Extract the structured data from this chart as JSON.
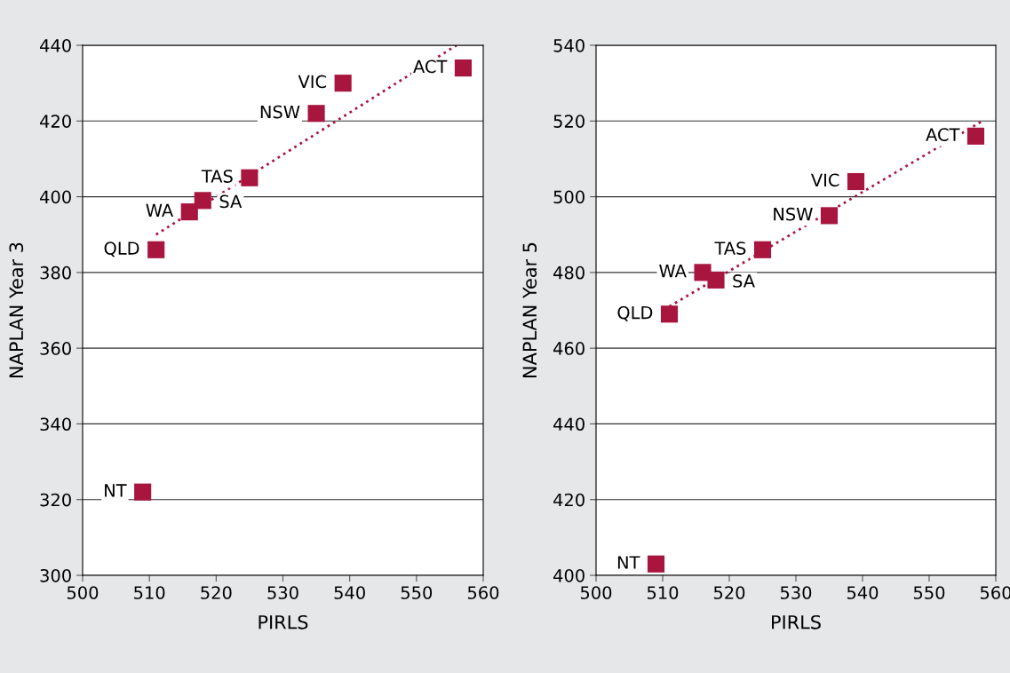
{
  "chart_data": [
    {
      "type": "scatter",
      "xlabel": "PIRLS",
      "ylabel": "NAPLAN Year 3",
      "xlim": [
        500,
        560
      ],
      "xticks": [
        500,
        510,
        520,
        530,
        540,
        550,
        560
      ],
      "ylim": [
        300,
        440
      ],
      "yticks": [
        300,
        320,
        340,
        360,
        380,
        400,
        420,
        440
      ],
      "grid": "y",
      "series": [
        {
          "color": "#a8163f",
          "marker": "square",
          "x": [
            509,
            511,
            516,
            518,
            525,
            535,
            539,
            557
          ],
          "values": [
            322,
            386,
            396,
            399,
            405,
            422,
            430,
            434
          ]
        },
        {
          "type": "line",
          "color": "#a8163f",
          "marker": "none",
          "line_style": "dotted",
          "x": [
            511,
            556
          ],
          "values": [
            390,
            440
          ]
        }
      ],
      "annotations": [
        {
          "text": "NT",
          "x": 509,
          "y": 322
        },
        {
          "text": "QLD",
          "x": 511,
          "y": 386
        },
        {
          "text": "WA",
          "x": 516,
          "y": 396
        },
        {
          "text": "SA",
          "x": 518,
          "y": 399
        },
        {
          "text": "TAS",
          "x": 525,
          "y": 405
        },
        {
          "text": "NSW",
          "x": 535,
          "y": 422
        },
        {
          "text": "VIC",
          "x": 539,
          "y": 430
        },
        {
          "text": "ACT",
          "x": 557,
          "y": 434
        }
      ]
    },
    {
      "type": "scatter",
      "xlabel": "PIRLS",
      "ylabel": "NAPLAN Year 5",
      "xlim": [
        500,
        560
      ],
      "xticks": [
        500,
        510,
        520,
        530,
        540,
        550,
        560
      ],
      "ylim": [
        400,
        540
      ],
      "yticks": [
        400,
        420,
        440,
        460,
        480,
        500,
        520,
        540
      ],
      "grid": "y",
      "series": [
        {
          "color": "#a8163f",
          "marker": "square",
          "x": [
            509,
            511,
            516,
            518,
            525,
            535,
            539,
            557
          ],
          "values": [
            403,
            469,
            480,
            478,
            486,
            495,
            504,
            516
          ]
        },
        {
          "type": "line",
          "color": "#a8163f",
          "marker": "none",
          "line_style": "dotted",
          "x": [
            511,
            558
          ],
          "values": [
            471,
            520
          ]
        }
      ],
      "annotations": [
        {
          "text": "NT",
          "x": 509,
          "y": 403
        },
        {
          "text": "QLD",
          "x": 511,
          "y": 469
        },
        {
          "text": "WA",
          "x": 516,
          "y": 480
        },
        {
          "text": "SA",
          "x": 518,
          "y": 478
        },
        {
          "text": "TAS",
          "x": 525,
          "y": 486
        },
        {
          "text": "NSW",
          "x": 535,
          "y": 495
        },
        {
          "text": "VIC",
          "x": 539,
          "y": 504
        },
        {
          "text": "ACT",
          "x": 557,
          "y": 516
        }
      ]
    }
  ]
}
